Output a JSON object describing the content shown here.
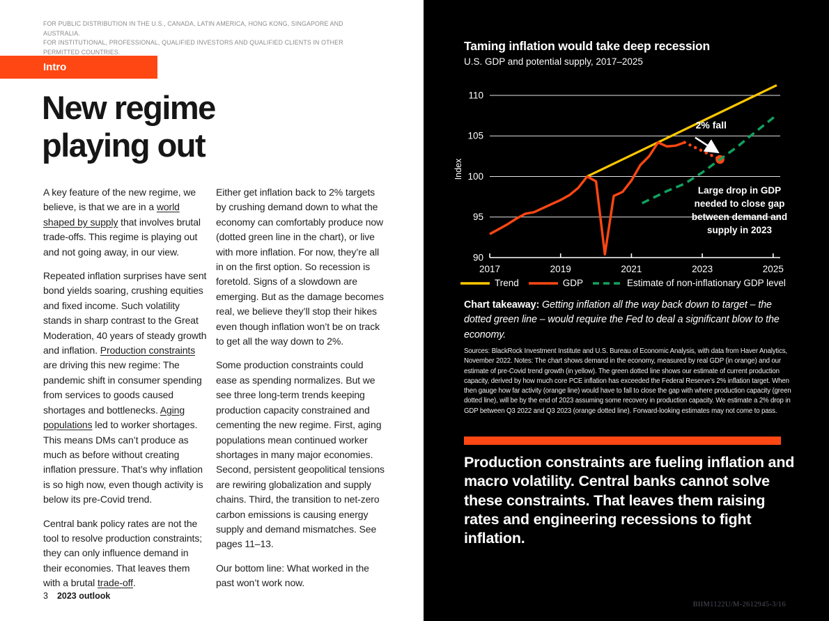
{
  "colors": {
    "accent": "#FF4713",
    "trend_yellow": "#FFC800",
    "gdp_orange": "#FF4713",
    "green": "#12A15E",
    "panel_bg": "#000000"
  },
  "header": {
    "disclaimer_line1": "FOR PUBLIC DISTRIBUTION IN THE U.S., CANADA, LATIN AMERICA, HONG KONG, SINGAPORE AND AUSTRALIA.",
    "disclaimer_line2": "FOR INSTITUTIONAL, PROFESSIONAL, QUALIFIED INVESTORS AND QUALIFIED CLIENTS IN OTHER PERMITTED COUNTRIES.",
    "section_tab": "Intro"
  },
  "article": {
    "title_lines": [
      "New regime",
      "playing out"
    ],
    "columns": [
      [
        [
          {
            "t": "A key feature of the new regime, we believe, is that we are in a "
          },
          {
            "t": "world shaped by supply",
            "u": true
          },
          {
            "t": " that involves brutal trade-offs. This regime is playing out and not going away, in our view."
          }
        ],
        [
          {
            "t": "Repeated inflation surprises have sent bond yields soaring, crushing equities and fixed income. Such volatility stands in sharp contrast to the Great Moderation, 40 years of steady growth and inflation. "
          },
          {
            "t": "Production constraints",
            "u": true
          },
          {
            "t": " are driving this new regime: The pandemic shift in consumer spending from services to goods caused shortages and bottlenecks. "
          },
          {
            "t": "Aging populations",
            "u": true
          },
          {
            "t": " led to worker shortages. This means DMs can’t produce as much as before without creating inflation pressure. That’s why inflation is so high now, even though activity is below its pre-Covid trend."
          }
        ],
        [
          {
            "t": "Central bank policy rates are not the tool to resolve production constraints; they can only influence demand in their economies. That leaves them with a brutal "
          },
          {
            "t": "trade-off",
            "u": true
          },
          {
            "t": "."
          }
        ]
      ],
      [
        [
          {
            "t": "Either get inflation back to 2% targets by crushing demand down to what the economy can comfortably produce now (dotted green line in the chart), or live with more inflation. For now, they’re all in on the first option. So recession is foretold. Signs of a slowdown are emerging. But as the damage becomes real, we believe they’ll stop their hikes even though inflation won’t be on track to get all the way down to 2%."
          }
        ],
        [
          {
            "t": "Some production constraints could ease as spending normalizes. But we see three long-term trends keeping production capacity constrained and cementing the new regime. First, aging populations mean continued worker shortages in many major economies. Second, persistent geopolitical tensions are rewiring globalization and supply chains. Third, the transition to net-zero carbon emissions is causing energy supply and demand mismatches. See pages 11–13."
          }
        ],
        [
          {
            "t": "Our bottom line: What worked in the past won’t work now."
          }
        ]
      ]
    ]
  },
  "chart": {
    "title": "Taming inflation would take deep recession",
    "subtitle": "U.S. GDP and potential supply, 2017–2025",
    "legend": [
      {
        "label": "Trend",
        "color": "#FFC800",
        "style": "solid"
      },
      {
        "label": "GDP",
        "color": "#FF4713",
        "style": "solid"
      },
      {
        "label": "Estimate of non-inflationary GDP level",
        "color": "#12A15E",
        "style": "dashed"
      }
    ],
    "takeaway_label": "Chart takeaway:",
    "takeaway_text": " Getting inflation all the way back down to target – the dotted green line – would require the Fed to deal a significant blow to the economy.",
    "sources": "Sources: BlackRock Investment Institute and U.S. Bureau of Economic Analysis, with data from Haver Analytics, November 2022. Notes: The chart shows demand in the economy, measured by real GDP (in orange) and our estimate of pre-Covid trend growth (in yellow). The green dotted line shows our estimate of current production capacity, derived by how much core PCE inflation has exceeded the Federal Reserve’s 2% inflation target. When then gauge how far activity (orange line) would have to fall to close the gap with where production capacity (green dotted line), will be by the end of 2023 assuming some recovery in production capacity. We estimate a 2% drop in GDP between Q3 2022 and Q3 2023 (orange dotted line). Forward-looking estimates may not come to pass."
  },
  "chart_data": {
    "type": "line",
    "title": "Taming inflation would take deep recession",
    "subtitle": "U.S. GDP and potential supply, 2017–2025",
    "xlabel": "",
    "ylabel": "Index",
    "xlim": [
      2017,
      2025.2
    ],
    "ylim": [
      90,
      111.8
    ],
    "xticks": [
      2017,
      2019,
      2021,
      2023,
      2025
    ],
    "yticks": [
      90,
      95,
      100,
      105,
      110
    ],
    "grid": true,
    "legend_position": "bottom",
    "series": [
      {
        "name": "Trend",
        "color": "#FFC800",
        "style": "solid",
        "width": 3.2,
        "x": [
          2019.75,
          2025.1
        ],
        "values": [
          100,
          111.25
        ]
      },
      {
        "name": "GDP",
        "color": "#FF4713",
        "style": "solid",
        "width": 3.4,
        "x": [
          2017,
          2017.25,
          2017.5,
          2017.75,
          2018,
          2018.25,
          2018.5,
          2018.75,
          2019,
          2019.25,
          2019.5,
          2019.75,
          2020,
          2020.25,
          2020.5,
          2020.75,
          2021,
          2021.25,
          2021.5,
          2021.75,
          2022,
          2022.25,
          2022.5
        ],
        "values": [
          92.9,
          93.5,
          94.1,
          94.8,
          95.4,
          95.6,
          96.1,
          96.6,
          97.1,
          97.7,
          98.6,
          100.0,
          99.4,
          90.4,
          97.6,
          98.1,
          99.5,
          101.4,
          102.5,
          104.2,
          103.7,
          103.8,
          104.2
        ]
      },
      {
        "name": "GDP forecast (orange dotted)",
        "color": "#FF4713",
        "style": "dotted",
        "width": 4.4,
        "end_dot": true,
        "x": [
          2022.5,
          2023.5
        ],
        "values": [
          104.2,
          102.1
        ]
      },
      {
        "name": "Estimate of non-inflationary GDP level",
        "color": "#12A15E",
        "style": "dashed",
        "width": 3.5,
        "x": [
          2021.3,
          2022,
          2022.5,
          2023,
          2023.5,
          2024,
          2024.5,
          2025.05
        ],
        "values": [
          96.7,
          98.2,
          99.1,
          100.5,
          102.1,
          103.7,
          105.5,
          107.4
        ]
      }
    ],
    "annotations": [
      {
        "type": "label",
        "text": "2% fall",
        "x": 2023.25,
        "y": 105.9,
        "bold": true,
        "size": 14
      },
      {
        "type": "arrow",
        "from": {
          "x": 2022.8,
          "y": 104.8
        },
        "to": {
          "x": 2023.42,
          "y": 103.05
        }
      },
      {
        "type": "label_multiline",
        "lines": [
          "Large drop in GDP",
          "needed to close gap",
          "between demand and",
          "supply in 2023"
        ],
        "x": 2024.05,
        "y": 97.9,
        "bold": true,
        "size": 13.5
      }
    ]
  },
  "footer": {
    "page_number": "3",
    "report_name": "2023 outlook",
    "doc_code": "BIIM1122U/M-2612945-3/16"
  }
}
